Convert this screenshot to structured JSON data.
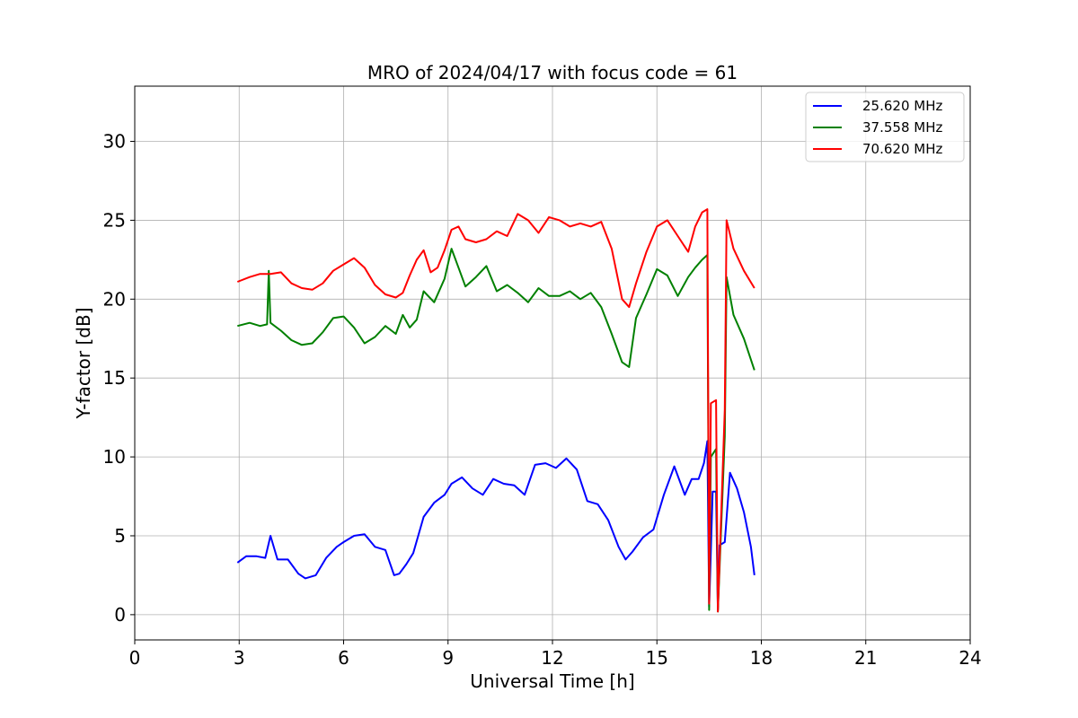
{
  "chart_data": {
    "type": "line",
    "title": "MRO of 2024/04/17 with focus code = 61",
    "xlabel": "Universal Time [h]",
    "ylabel": "Y-factor [dB]",
    "xlim": [
      0,
      24
    ],
    "ylim": [
      -1.6,
      33.5
    ],
    "xticks": [
      0,
      3,
      6,
      9,
      12,
      15,
      18,
      21,
      24
    ],
    "yticks": [
      0,
      5,
      10,
      15,
      20,
      25,
      30
    ],
    "grid": true,
    "legend_position": "top-right",
    "series": [
      {
        "name": "25.620 MHz",
        "color": "#0000ff",
        "x": [
          2.95,
          3.2,
          3.5,
          3.75,
          3.9,
          4.1,
          4.4,
          4.7,
          4.9,
          5.2,
          5.5,
          5.8,
          6.0,
          6.3,
          6.6,
          6.9,
          7.2,
          7.45,
          7.6,
          7.8,
          8.0,
          8.3,
          8.6,
          8.9,
          9.1,
          9.4,
          9.7,
          10.0,
          10.3,
          10.6,
          10.9,
          11.2,
          11.5,
          11.8,
          12.1,
          12.4,
          12.7,
          13.0,
          13.3,
          13.6,
          13.9,
          14.1,
          14.3,
          14.6,
          14.9,
          15.2,
          15.5,
          15.8,
          16.0,
          16.2,
          16.35,
          16.45,
          16.5,
          16.55,
          16.6,
          16.7,
          16.75,
          16.8,
          16.95,
          17.1,
          17.3,
          17.5,
          17.7,
          17.8
        ],
        "y": [
          3.3,
          3.7,
          3.7,
          3.6,
          5.0,
          3.5,
          3.5,
          2.6,
          2.3,
          2.5,
          3.6,
          4.3,
          4.6,
          5.0,
          5.1,
          4.3,
          4.1,
          2.5,
          2.6,
          3.2,
          3.9,
          6.2,
          7.1,
          7.6,
          8.3,
          8.7,
          8.0,
          7.6,
          8.6,
          8.3,
          8.2,
          7.6,
          9.5,
          9.6,
          9.3,
          9.9,
          9.2,
          7.2,
          7.0,
          6.0,
          4.3,
          3.5,
          4.0,
          4.9,
          5.4,
          7.6,
          9.4,
          7.6,
          8.6,
          8.6,
          9.6,
          11.0,
          0.5,
          4.0,
          7.8,
          7.8,
          0.3,
          4.4,
          4.6,
          9.0,
          8.0,
          6.5,
          4.3,
          2.5
        ]
      },
      {
        "name": "37.558 MHz",
        "color": "#008000",
        "x": [
          2.95,
          3.3,
          3.6,
          3.8,
          3.85,
          3.9,
          4.2,
          4.5,
          4.8,
          5.1,
          5.4,
          5.7,
          6.0,
          6.3,
          6.6,
          6.9,
          7.2,
          7.5,
          7.7,
          7.9,
          8.1,
          8.3,
          8.6,
          8.9,
          9.1,
          9.3,
          9.5,
          9.8,
          10.1,
          10.4,
          10.7,
          11.0,
          11.3,
          11.6,
          11.9,
          12.2,
          12.5,
          12.8,
          13.1,
          13.4,
          13.7,
          14.0,
          14.2,
          14.4,
          14.7,
          15.0,
          15.3,
          15.6,
          15.9,
          16.1,
          16.3,
          16.45,
          16.5,
          16.55,
          16.7,
          16.75,
          16.95,
          17.0,
          17.2,
          17.5,
          17.8
        ],
        "y": [
          18.3,
          18.5,
          18.3,
          18.4,
          21.8,
          18.5,
          18.0,
          17.4,
          17.1,
          17.2,
          17.9,
          18.8,
          18.9,
          18.2,
          17.2,
          17.6,
          18.3,
          17.8,
          19.0,
          18.2,
          18.7,
          20.5,
          19.8,
          21.3,
          23.2,
          22.0,
          20.8,
          21.4,
          22.1,
          20.5,
          20.9,
          20.4,
          19.8,
          20.7,
          20.2,
          20.2,
          20.5,
          20.0,
          20.4,
          19.5,
          17.8,
          16.0,
          15.7,
          18.8,
          20.3,
          21.9,
          21.5,
          20.2,
          21.4,
          22.0,
          22.5,
          22.8,
          0.3,
          10.0,
          10.5,
          0.2,
          11.3,
          21.4,
          19.0,
          17.5,
          15.5
        ]
      },
      {
        "name": "70.620 MHz",
        "color": "#ff0000",
        "x": [
          2.95,
          3.3,
          3.6,
          3.9,
          4.2,
          4.5,
          4.8,
          5.1,
          5.4,
          5.7,
          6.0,
          6.3,
          6.6,
          6.9,
          7.2,
          7.5,
          7.7,
          7.9,
          8.1,
          8.3,
          8.5,
          8.7,
          8.9,
          9.1,
          9.3,
          9.5,
          9.8,
          10.1,
          10.4,
          10.7,
          11.0,
          11.3,
          11.6,
          11.9,
          12.2,
          12.5,
          12.8,
          13.1,
          13.4,
          13.7,
          14.0,
          14.2,
          14.4,
          14.7,
          15.0,
          15.3,
          15.6,
          15.9,
          16.1,
          16.3,
          16.45,
          16.5,
          16.55,
          16.7,
          16.75,
          16.95,
          17.0,
          17.2,
          17.5,
          17.8
        ],
        "y": [
          21.1,
          21.4,
          21.6,
          21.6,
          21.7,
          21.0,
          20.7,
          20.6,
          21.0,
          21.8,
          22.2,
          22.6,
          22.0,
          20.9,
          20.3,
          20.1,
          20.4,
          21.5,
          22.5,
          23.1,
          21.7,
          22.0,
          23.1,
          24.4,
          24.6,
          23.8,
          23.6,
          23.8,
          24.3,
          24.0,
          25.4,
          25.0,
          24.2,
          25.2,
          25.0,
          24.6,
          24.8,
          24.6,
          24.9,
          23.2,
          20.0,
          19.5,
          21.0,
          23.0,
          24.6,
          25.0,
          24.0,
          23.0,
          24.6,
          25.5,
          25.7,
          0.7,
          13.4,
          13.6,
          0.2,
          13.0,
          25.0,
          23.2,
          21.8,
          20.7
        ]
      }
    ]
  }
}
